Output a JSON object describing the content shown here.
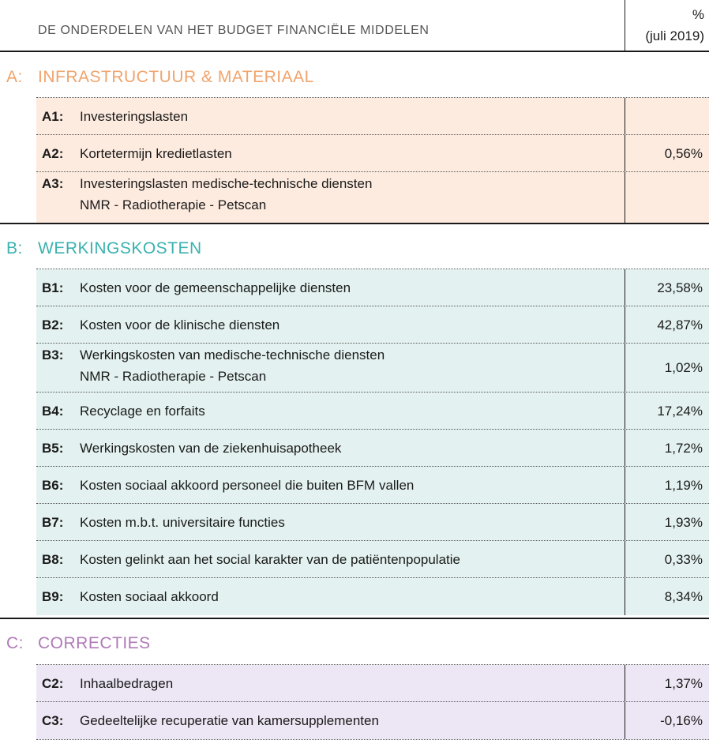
{
  "header": {
    "title": "DE ONDERDELEN VAN HET BUDGET FINANCIËLE MIDDELEN",
    "pct_line1": "%",
    "pct_line2": "(juli 2019)"
  },
  "sections": {
    "A": {
      "letter": "A:",
      "title": "INFRASTRUCTUUR & MATERIAAL",
      "color": "#f0a46c",
      "rows": [
        {
          "code": "A1:",
          "line1": "Investeringslasten",
          "line2": "",
          "pct": ""
        },
        {
          "code": "A2:",
          "line1": "Kortetermijn kredietlasten",
          "line2": "",
          "pct": "0,56%"
        },
        {
          "code": "A3:",
          "line1": "Investeringslasten medische-technische diensten",
          "line2": "NMR - Radiotherapie - Petscan",
          "pct": ""
        }
      ]
    },
    "B": {
      "letter": "B:",
      "title": "WERKINGSKOSTEN",
      "color": "#3ab2b0",
      "rows": [
        {
          "code": "B1:",
          "line1": "Kosten voor de gemeenschappelijke diensten",
          "line2": "",
          "pct": "23,58%"
        },
        {
          "code": "B2:",
          "line1": "Kosten voor de klinische diensten",
          "line2": "",
          "pct": "42,87%"
        },
        {
          "code": "B3:",
          "line1": "Werkingskosten van medische-technische diensten",
          "line2": "NMR - Radiotherapie - Petscan",
          "pct": "1,02%"
        },
        {
          "code": "B4:",
          "line1": "Recyclage en forfaits",
          "line2": "",
          "pct": "17,24%"
        },
        {
          "code": "B5:",
          "line1": "Werkingskosten van de ziekenhuisapotheek",
          "line2": "",
          "pct": "1,72%"
        },
        {
          "code": "B6:",
          "line1": "Kosten sociaal akkoord personeel die buiten BFM vallen",
          "line2": "",
          "pct": "1,19%"
        },
        {
          "code": "B7:",
          "line1": "Kosten m.b.t. universitaire functies",
          "line2": "",
          "pct": "1,93%"
        },
        {
          "code": "B8:",
          "line1": "Kosten gelinkt aan het social karakter van de patiëntenpopulatie",
          "line2": "",
          "pct": "0,33%"
        },
        {
          "code": "B9:",
          "line1": "Kosten sociaal akkoord",
          "line2": "",
          "pct": "8,34%"
        }
      ]
    },
    "C": {
      "letter": "C:",
      "title": "CORRECTIES",
      "color": "#b07ab8",
      "rows": [
        {
          "code": "C2:",
          "line1": "Inhaalbedragen",
          "line2": "",
          "pct": "1,37%"
        },
        {
          "code": "C3:",
          "line1": "Gedeeltelijke recuperatie van kamersupplementen",
          "line2": "",
          "pct": "-0,16%"
        }
      ]
    }
  }
}
